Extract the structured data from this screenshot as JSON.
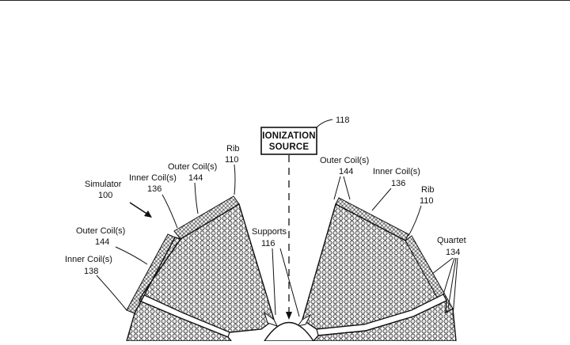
{
  "figure": {
    "ionization_source": {
      "line1": "IONIZATION",
      "line2": "SOURCE",
      "ref": "118"
    },
    "labels": {
      "simulator": "Simulator",
      "simulator_num": "100",
      "inner_coil_upper_left": "Inner Coil(s)",
      "inner_coil_upper_left_num": "136",
      "outer_coil_upper_left": "Outer Coil(s)",
      "outer_coil_upper_left_num": "144",
      "rib_left": "Rib",
      "rib_left_num": "110",
      "outer_coil_lower_left": "Outer Coil(s)",
      "outer_coil_lower_left_num": "144",
      "inner_coil_lower_left": "Inner Coil(s)",
      "inner_coil_lower_left_num": "138",
      "supports": "Supports",
      "supports_num": "116",
      "outer_coil_right": "Outer Coil(s)",
      "outer_coil_right_num": "144",
      "inner_coil_right": "Inner Coil(s)",
      "inner_coil_right_num": "136",
      "rib_right": "Rib",
      "rib_right_num": "110",
      "quartet": "Quartet",
      "quartet_num": "134"
    },
    "colors": {
      "ink": "#111111",
      "coil_fill": "#d9d9d9",
      "background": "#ffffff"
    }
  }
}
